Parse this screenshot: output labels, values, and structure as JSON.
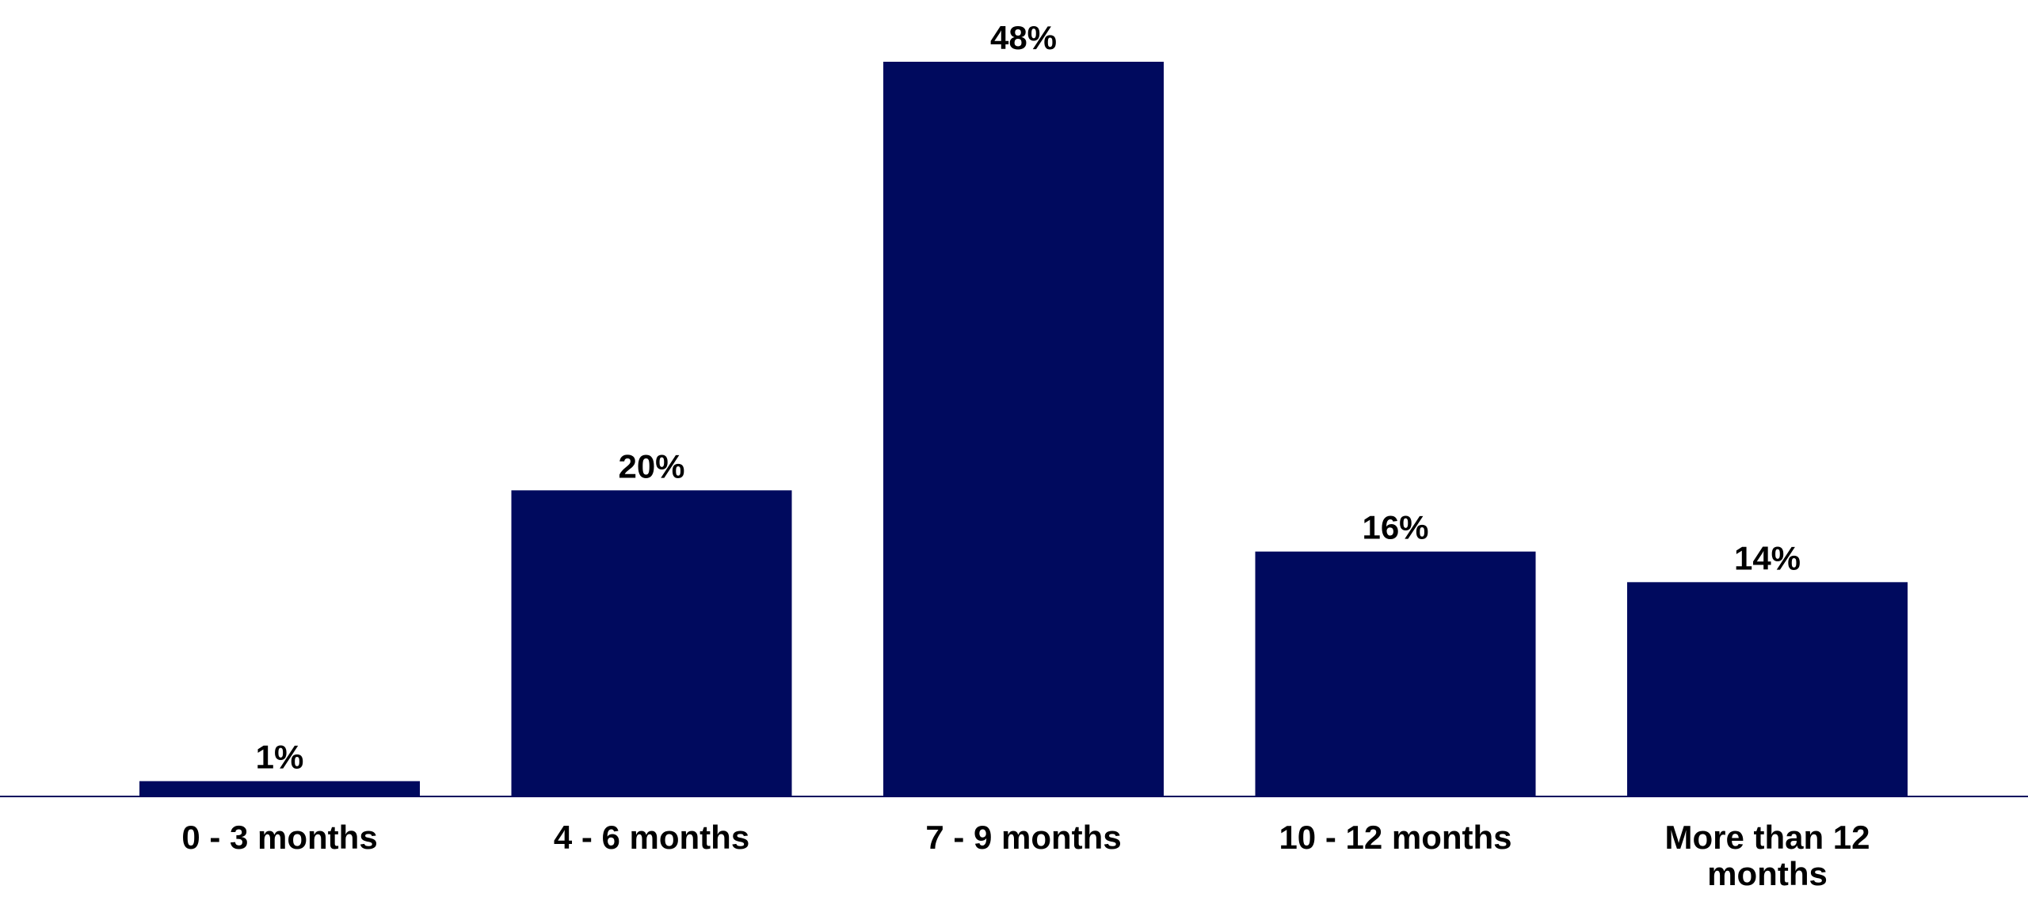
{
  "chart_data": {
    "type": "bar",
    "categories": [
      "0 - 3 months",
      "4 - 6 months",
      "7 - 9 months",
      "10 - 12 months",
      "More than 12 months"
    ],
    "category_lines": [
      [
        "0 - 3 months"
      ],
      [
        "4 - 6 months"
      ],
      [
        "7 - 9 months"
      ],
      [
        "10 - 12 months"
      ],
      [
        "More than 12",
        "months"
      ]
    ],
    "values": [
      1,
      20,
      48,
      16,
      14
    ],
    "data_labels": [
      "1%",
      "20%",
      "48%",
      "16%",
      "14%"
    ],
    "ylim": [
      0,
      48
    ],
    "grid": false,
    "legend": "none",
    "colors": {
      "bar": "#000A5E",
      "baseline": "#000A5E",
      "text": "#000000"
    }
  }
}
